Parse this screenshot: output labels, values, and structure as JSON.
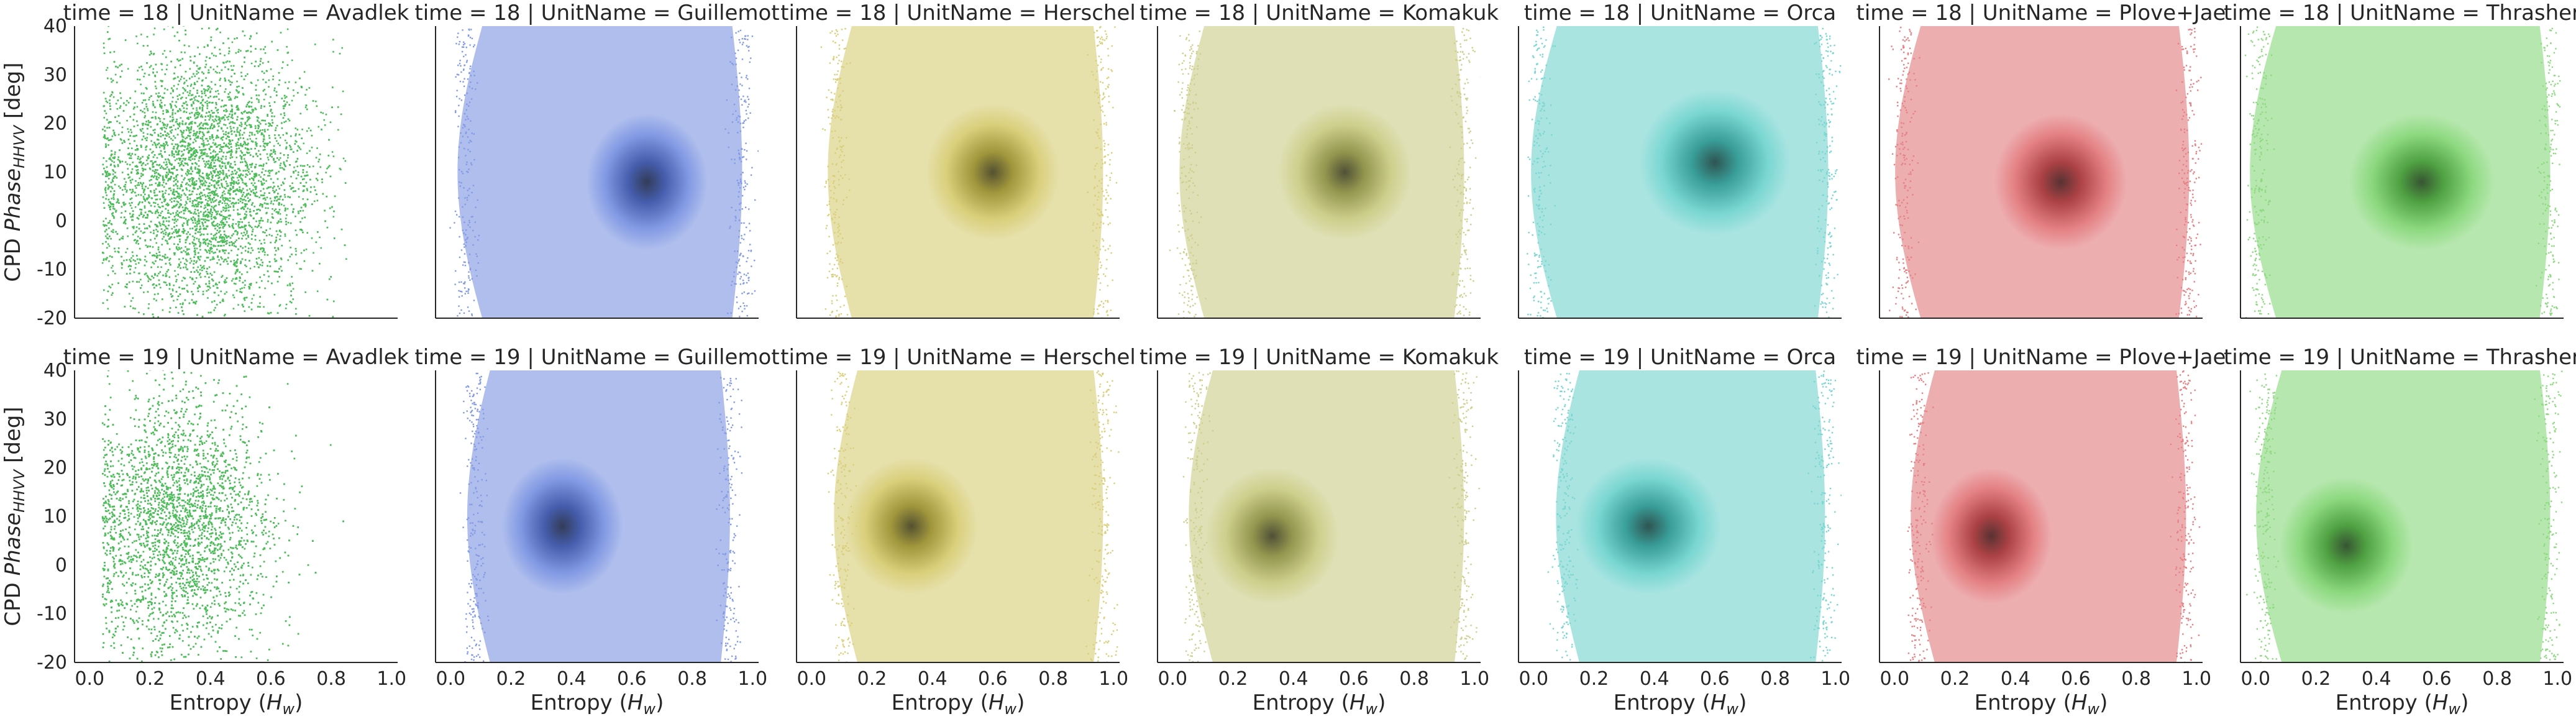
{
  "chart_data": {
    "type": "scatter",
    "facet_rows": [
      {
        "field": "time",
        "value": "18"
      },
      {
        "field": "time",
        "value": "19"
      }
    ],
    "facet_cols": [
      {
        "field": "UnitName",
        "value": "Avadlek",
        "color": "#4dbd5a",
        "style": "points"
      },
      {
        "field": "UnitName",
        "value": "Guillemot",
        "color": "#4e6fd8",
        "style": "density"
      },
      {
        "field": "UnitName",
        "value": "Herschel",
        "color": "#c8bb43",
        "style": "density"
      },
      {
        "field": "UnitName",
        "value": "Komakuk",
        "color": "#b7bb5a",
        "style": "density"
      },
      {
        "field": "UnitName",
        "value": "Orca",
        "color": "#3fc4bd",
        "style": "density"
      },
      {
        "field": "UnitName",
        "value": "Plove+Jae",
        "color": "#d84b4f",
        "style": "density"
      },
      {
        "field": "UnitName",
        "value": "Thrasher",
        "color": "#5cc94a",
        "style": "density"
      }
    ],
    "panels": [
      [
        {
          "center": [
            0.38,
            8
          ],
          "spread": [
            0.24,
            14
          ],
          "xrange": [
            0.04,
            0.85
          ],
          "density": 0.5
        },
        {
          "center": [
            0.65,
            8
          ],
          "spread": [
            0.2,
            14
          ],
          "xrange": [
            0.05,
            0.96
          ],
          "density": 1.0
        },
        {
          "center": [
            0.6,
            10
          ],
          "spread": [
            0.22,
            14
          ],
          "xrange": [
            0.08,
            0.96
          ],
          "density": 1.0
        },
        {
          "center": [
            0.57,
            10
          ],
          "spread": [
            0.22,
            14
          ],
          "xrange": [
            0.05,
            0.96
          ],
          "density": 1.0
        },
        {
          "center": [
            0.6,
            12
          ],
          "spread": [
            0.25,
            15
          ],
          "xrange": [
            0.02,
            0.97
          ],
          "density": 1.0
        },
        {
          "center": [
            0.55,
            8
          ],
          "spread": [
            0.22,
            14
          ],
          "xrange": [
            0.03,
            0.97
          ],
          "density": 1.0
        },
        {
          "center": [
            0.55,
            8
          ],
          "spread": [
            0.24,
            14
          ],
          "xrange": [
            0.01,
            0.97
          ],
          "density": 1.0
        }
      ],
      [
        {
          "center": [
            0.3,
            8
          ],
          "spread": [
            0.2,
            14
          ],
          "xrange": [
            0.04,
            0.85
          ],
          "density": 0.5
        },
        {
          "center": [
            0.37,
            8
          ],
          "spread": [
            0.2,
            14
          ],
          "xrange": [
            0.08,
            0.92
          ],
          "density": 1.0
        },
        {
          "center": [
            0.33,
            8
          ],
          "spread": [
            0.22,
            14
          ],
          "xrange": [
            0.1,
            0.96
          ],
          "density": 1.0
        },
        {
          "center": [
            0.33,
            6
          ],
          "spread": [
            0.22,
            14
          ],
          "xrange": [
            0.08,
            0.96
          ],
          "density": 1.0
        },
        {
          "center": [
            0.38,
            8
          ],
          "spread": [
            0.24,
            14
          ],
          "xrange": [
            0.1,
            0.96
          ],
          "density": 1.0
        },
        {
          "center": [
            0.32,
            6
          ],
          "spread": [
            0.2,
            14
          ],
          "xrange": [
            0.08,
            0.96
          ],
          "density": 1.0
        },
        {
          "center": [
            0.3,
            4
          ],
          "spread": [
            0.22,
            14
          ],
          "xrange": [
            0.03,
            0.97
          ],
          "density": 1.0
        }
      ]
    ],
    "xlabel": "Entropy (H_w)",
    "ylabel": "CPD Phase_HHVV [deg]",
    "xlim": [
      -0.05,
      1.02
    ],
    "ylim": [
      -20,
      40
    ],
    "xticks": [
      0.0,
      0.2,
      0.4,
      0.6,
      0.8,
      1.0
    ],
    "yticks": [
      -20,
      -10,
      0,
      10,
      20,
      30,
      40
    ],
    "sharex": true,
    "sharey": true,
    "grid": false,
    "legend": "none"
  },
  "text": {
    "xlabel_prefix": "Entropy (",
    "xlabel_var": "H",
    "xlabel_sub": "w",
    "xlabel_suffix": ")",
    "ylabel_prefix": "CPD ",
    "ylabel_var": "Phase",
    "ylabel_sub": "HHVV",
    "ylabel_suffix": " [deg]"
  }
}
